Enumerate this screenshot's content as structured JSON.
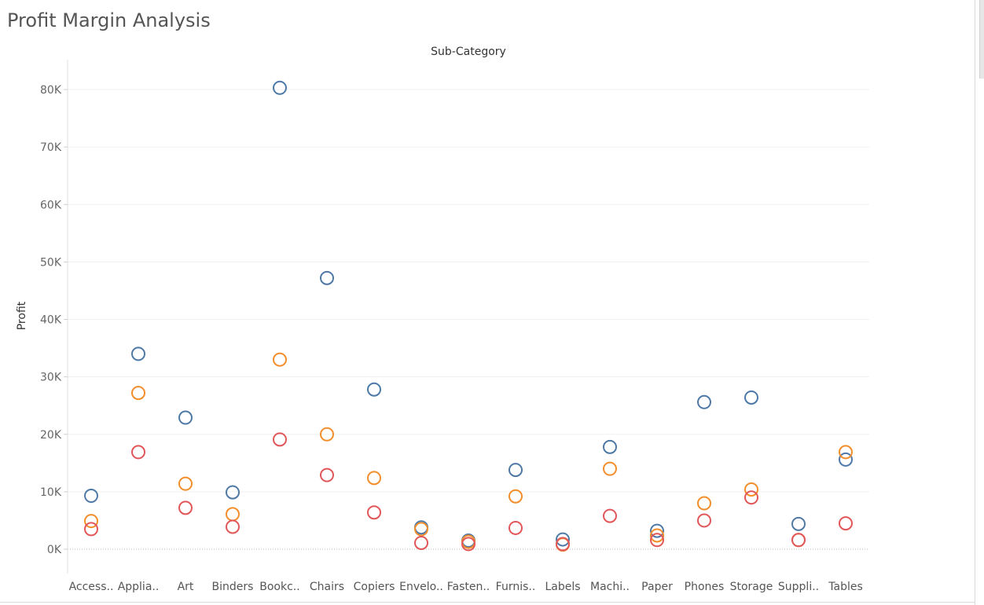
{
  "page": {
    "title": "Profit Margin Analysis"
  },
  "chart_data": {
    "type": "scatter",
    "column_header": "Sub-Category",
    "ylabel": "Profit",
    "ylim": [
      -5000,
      85000
    ],
    "yticks": [
      0,
      10000,
      20000,
      30000,
      40000,
      50000,
      60000,
      70000,
      80000
    ],
    "ytick_labels": [
      "0K",
      "10K",
      "20K",
      "30K",
      "40K",
      "50K",
      "60K",
      "70K",
      "80K"
    ],
    "categories": [
      "Access..",
      "Applia..",
      "Art",
      "Binders",
      "Bookc..",
      "Chairs",
      "Copiers",
      "Envelo..",
      "Fasten..",
      "Furnis..",
      "Labels",
      "Machi..",
      "Paper",
      "Phones",
      "Storage",
      "Suppli..",
      "Tables"
    ],
    "series": [
      {
        "color": "#4e79a7",
        "values": [
          9300,
          34000,
          22900,
          9900,
          80300,
          47200,
          27800,
          3800,
          1500,
          13800,
          1700,
          17800,
          3200,
          25600,
          26400,
          4400,
          15600
        ]
      },
      {
        "color": "#f28e2b",
        "values": [
          4900,
          27200,
          11400,
          6100,
          33000,
          20000,
          12400,
          3500,
          1300,
          9200,
          800,
          14000,
          2400,
          8000,
          10400,
          1600,
          16900
        ]
      },
      {
        "color": "#e15759",
        "values": [
          3500,
          16900,
          7200,
          3900,
          19100,
          12900,
          6400,
          1100,
          900,
          3700,
          900,
          5800,
          1600,
          5000,
          9000,
          1600,
          4500
        ]
      }
    ],
    "grid": true,
    "marker": "open-circle"
  }
}
